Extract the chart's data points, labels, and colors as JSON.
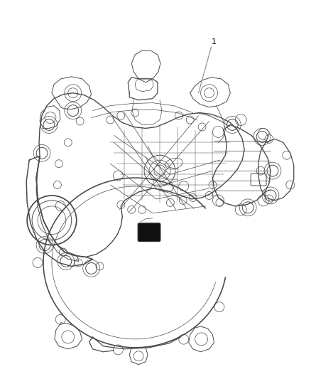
{
  "background_color": "#ffffff",
  "fig_width": 4.38,
  "fig_height": 5.33,
  "dpi": 100,
  "label_number": "1",
  "label_fontsize": 8,
  "line_color": "#888888",
  "drawing_color": "#4a4a4a",
  "lw_main": 0.9,
  "lw_thin": 0.5,
  "lw_medium": 0.7
}
